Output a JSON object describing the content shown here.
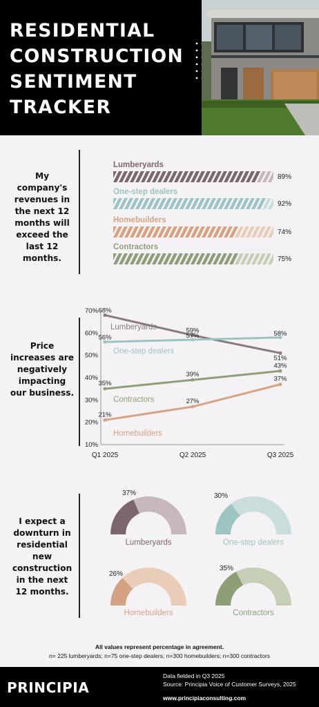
{
  "header": {
    "title_lines": [
      "RESIDENTIAL",
      "CONSTRUCTION",
      "SENTIMENT",
      "TRACKER"
    ]
  },
  "sections": {
    "revenue_label": "My company's revenues in the next 12 months will exceed the last 12 months.",
    "price_label": "Price increases are negatively impacting our business.",
    "downturn_label": "I expect a downturn in residential new construction in the next 12 months."
  },
  "colors": {
    "lumberyards": "#7b6670",
    "one_step_dealers": "#9cc4c0",
    "homebuilders": "#d4a384",
    "contractors": "#8e9f78"
  },
  "chart_data": [
    {
      "type": "bar",
      "categories": [
        "Lumberyards",
        "One-step dealers",
        "Homebuilders",
        "Contractors"
      ],
      "values": [
        89,
        92,
        74,
        75
      ],
      "value_labels": [
        "89%",
        "92%",
        "74%",
        "75%"
      ],
      "colors": [
        "#7b6670",
        "#9cc4c0",
        "#d4a384",
        "#8e9f78"
      ],
      "track_colors": [
        "#c6b8be",
        "#c9dedc",
        "#e9cdb8",
        "#c6cfb6"
      ],
      "ylim": [
        0,
        100
      ]
    },
    {
      "type": "line",
      "x": [
        "Q1 2025",
        "Q2 2025",
        "Q3 2025"
      ],
      "y_ticks": [
        "70%",
        "60%",
        "50%",
        "40%",
        "30%",
        "20%",
        "10%"
      ],
      "ylim": [
        10,
        70
      ],
      "series": [
        {
          "name": "Lumberyards",
          "values": [
            68,
            59,
            51
          ],
          "labels": [
            "68%",
            "59%",
            "51%"
          ],
          "color": "#8a7981"
        },
        {
          "name": "One-step dealers",
          "values": [
            56,
            57,
            58
          ],
          "labels": [
            "56%",
            "57%",
            "58%"
          ],
          "color": "#9cc4c0"
        },
        {
          "name": "Contractors",
          "values": [
            35,
            39,
            43
          ],
          "labels": [
            "35%",
            "39%",
            "43%"
          ],
          "color": "#8e9f78"
        },
        {
          "name": "Homebuilders",
          "values": [
            21,
            27,
            37
          ],
          "labels": [
            "21%",
            "27%",
            "37%"
          ],
          "color": "#d4a384"
        }
      ]
    },
    {
      "type": "pie",
      "style": "half-donut",
      "categories": [
        "Lumberyards",
        "One-step dealers",
        "Homebuilders",
        "Contractors"
      ],
      "values": [
        37,
        30,
        26,
        35
      ],
      "value_labels": [
        "37%",
        "30%",
        "26%",
        "35%"
      ],
      "colors": [
        "#7b6670",
        "#9cc4c0",
        "#d4a384",
        "#8e9f78"
      ],
      "track_colors": [
        "#c6b8be",
        "#c9dedc",
        "#e9cdb8",
        "#c6cfb6"
      ]
    }
  ],
  "footnote": {
    "line1": "All values represent percentage in agreement.",
    "line2": "n= 225 lumberyards; n=75 one-step dealers; n=300 homebuilders; n=300 contractors"
  },
  "footer": {
    "logo": "PRINCIPIA",
    "line1": "Data fielded in Q3 2025",
    "line2": "Source: Principia Voice of Customer Surveys, 2025",
    "url": "www.principiaconsulting.com"
  }
}
